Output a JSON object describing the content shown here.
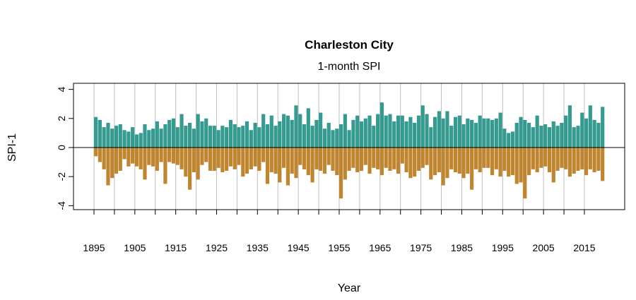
{
  "chart_data": {
    "type": "bar",
    "title": "Charleston City",
    "subtitle": "1-month SPI",
    "xlabel": "Year",
    "ylabel": "SPI-1",
    "xlim": [
      1890,
      2025
    ],
    "ylim": [
      -4.3,
      4.3
    ],
    "yticks": [
      4,
      2,
      0,
      -2,
      -4
    ],
    "xtick_labels": [
      "1895",
      "1905",
      "1915",
      "1925",
      "1935",
      "1945",
      "1955",
      "1965",
      "1975",
      "1985",
      "1995",
      "2005",
      "2015"
    ],
    "grid_years_step": 5,
    "grid": true,
    "colors": {
      "positive": "#359a8f",
      "negative": "#c0852f",
      "grid": "#bebebe"
    },
    "note_values": "annual maximum and minimum of monthly SPI-1, estimated",
    "years_start": 1895,
    "annual_max": [
      2.1,
      1.9,
      1.4,
      1.7,
      1.3,
      1.5,
      1.6,
      1.2,
      1.1,
      1.4,
      0.9,
      1.0,
      1.6,
      1.2,
      1.3,
      1.8,
      1.3,
      1.6,
      1.9,
      2.0,
      1.4,
      2.3,
      1.5,
      1.7,
      1.3,
      2.3,
      1.8,
      2.0,
      1.5,
      1.5,
      1.2,
      1.5,
      1.4,
      1.9,
      1.6,
      1.4,
      1.5,
      1.8,
      1.2,
      1.7,
      1.4,
      2.3,
      1.6,
      2.2,
      1.5,
      1.8,
      2.3,
      2.2,
      1.9,
      2.9,
      2.3,
      1.6,
      2.7,
      1.5,
      1.9,
      2.4,
      1.3,
      1.7,
      1.2,
      1.3,
      1.6,
      2.3,
      1.2,
      1.9,
      2.2,
      1.8,
      2.0,
      2.2,
      1.5,
      2.3,
      3.1,
      2.2,
      2.3,
      1.8,
      2.2,
      2.2,
      1.8,
      2.1,
      1.7,
      2.2,
      2.9,
      2.3,
      1.4,
      2.1,
      2.5,
      2.0,
      2.5,
      1.5,
      2.1,
      2.2,
      1.6,
      2.0,
      1.9,
      1.7,
      2.2,
      2.0,
      2.0,
      1.9,
      2.0,
      2.4,
      1.3,
      1.0,
      1.1,
      1.7,
      2.1,
      1.9,
      1.7,
      1.4,
      2.2,
      1.5,
      1.6,
      1.4,
      1.8,
      1.5,
      1.7,
      2.2,
      2.9,
      1.4,
      1.5,
      2.4,
      2.0,
      2.9,
      1.9,
      1.7,
      2.8
    ],
    "annual_min": [
      -0.6,
      -1.0,
      -1.5,
      -2.6,
      -2.1,
      -1.8,
      -1.6,
      -0.8,
      -1.3,
      -1.1,
      -1.3,
      -1.5,
      -2.2,
      -1.2,
      -1.3,
      -1.6,
      -1.0,
      -2.5,
      -1.0,
      -1.1,
      -1.2,
      -1.5,
      -2.0,
      -2.9,
      -1.7,
      -2.2,
      -1.2,
      -1.0,
      -1.6,
      -1.6,
      -1.4,
      -1.7,
      -1.6,
      -1.3,
      -1.5,
      -1.2,
      -2.0,
      -1.8,
      -1.5,
      -1.3,
      -1.6,
      -1.0,
      -2.5,
      -1.7,
      -1.8,
      -2.4,
      -1.4,
      -2.6,
      -1.8,
      -2.1,
      -1.2,
      -1.5,
      -1.9,
      -2.4,
      -1.5,
      -1.6,
      -1.8,
      -1.2,
      -1.6,
      -1.9,
      -3.5,
      -2.2,
      -1.6,
      -1.4,
      -1.7,
      -1.6,
      -1.2,
      -1.8,
      -1.4,
      -1.5,
      -1.9,
      -1.4,
      -1.6,
      -1.5,
      -1.8,
      -1.1,
      -1.7,
      -2.1,
      -2.0,
      -1.6,
      -1.4,
      -1.2,
      -2.2,
      -1.9,
      -1.7,
      -2.6,
      -2.1,
      -1.5,
      -1.7,
      -1.8,
      -2.1,
      -1.8,
      -2.9,
      -1.5,
      -1.7,
      -1.4,
      -1.4,
      -1.9,
      -1.5,
      -2.0,
      -1.6,
      -2.0,
      -1.9,
      -2.5,
      -2.4,
      -3.5,
      -1.9,
      -1.5,
      -1.7,
      -1.4,
      -1.3,
      -1.7,
      -2.4,
      -1.6,
      -1.4,
      -1.5,
      -2.0,
      -1.8,
      -1.6,
      -1.5,
      -1.9,
      -1.5,
      -1.7,
      -1.6,
      -2.3
    ]
  }
}
